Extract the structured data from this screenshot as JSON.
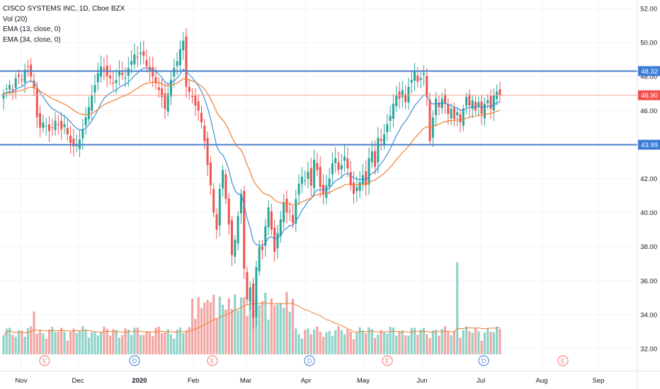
{
  "legend": {
    "symbol_line": "CISCO SYSTEMS INC, 1D, Cboe BZX",
    "volume_line": "Vol (20)",
    "ema_fast_line": "EMA (13, close, 0)",
    "ema_slow_line": "EMA (34, close, 0)"
  },
  "colors": {
    "up": "#26a69a",
    "down": "#ef5350",
    "vol_up": "#8fd2c8",
    "vol_down": "#f2a5a2",
    "ema_fast": "#3d8fd6",
    "ema_slow": "#f07f33",
    "horizontal_line": "#4a7fc7",
    "last_price_line": "#f4a59a",
    "event_circle_earnings": "#f28b82",
    "event_circle_dividend": "#5b8fd8"
  },
  "chart_data": {
    "type": "candlestick",
    "title": "CISCO SYSTEMS INC, 1D, Cboe BZX",
    "y_axis": {
      "ylim": [
        30.8,
        52.3
      ],
      "ticks": [
        32,
        34,
        36,
        38,
        40,
        42,
        44,
        46,
        48,
        50,
        52
      ],
      "tick_labels": [
        "32.00",
        "34.00",
        "36.00",
        "38.00",
        "40.00",
        "42.00",
        "44.00",
        "46.00",
        "48.00",
        "50.00",
        "52.00"
      ]
    },
    "x_axis": {
      "tick_labels": [
        "Nov",
        "Dec",
        "2020",
        "Feb",
        "Mar",
        "Apr",
        "May",
        "Jun",
        "Jul",
        "Aug",
        "Sep"
      ]
    },
    "price_labels": [
      {
        "value": 48.32,
        "text": "48.32",
        "kind": "horizontal_line"
      },
      {
        "value": 46.9,
        "text": "46.90",
        "kind": "last_price"
      },
      {
        "value": 43.99,
        "text": "43.99",
        "kind": "horizontal_line"
      }
    ],
    "horizontal_lines": [
      48.32,
      43.99
    ],
    "events": [
      {
        "type": "earnings",
        "letter": "E"
      },
      {
        "type": "dividend",
        "letter": "D"
      },
      {
        "type": "earnings",
        "letter": "E"
      },
      {
        "type": "dividend",
        "letter": "D"
      },
      {
        "type": "earnings",
        "letter": "E"
      },
      {
        "type": "dividend",
        "letter": "D"
      },
      {
        "type": "earnings",
        "letter": "E"
      }
    ],
    "closes": [
      47.0,
      47.3,
      47.5,
      47.2,
      47.9,
      48.0,
      47.8,
      48.4,
      48.6,
      48.0,
      47.3,
      45.6,
      45.0,
      45.3,
      45.1,
      44.8,
      45.0,
      45.4,
      45.2,
      44.9,
      45.2,
      44.6,
      44.1,
      43.9,
      44.0,
      44.3,
      44.9,
      45.6,
      46.2,
      46.9,
      47.5,
      48.2,
      48.6,
      48.4,
      48.0,
      47.9,
      47.6,
      47.8,
      48.3,
      48.1,
      47.9,
      48.5,
      48.9,
      49.3,
      49.1,
      49.4,
      49.2,
      48.6,
      48.3,
      48.0,
      47.6,
      47.2,
      46.8,
      46.1,
      47.0,
      47.8,
      48.5,
      48.9,
      49.6,
      50.1,
      47.4,
      47.1,
      46.8,
      46.3,
      46.0,
      45.3,
      44.2,
      42.8,
      41.6,
      40.0,
      39.0,
      41.4,
      42.5,
      40.8,
      39.3,
      37.5,
      38.4,
      39.8,
      41.1,
      36.7,
      34.9,
      35.6,
      33.8,
      36.8,
      38.0,
      37.8,
      39.2,
      40.3,
      39.0,
      37.7,
      38.8,
      39.6,
      40.6,
      40.0,
      40.1,
      39.4,
      40.8,
      41.7,
      42.1,
      41.9,
      42.4,
      41.6,
      43.1,
      42.5,
      41.5,
      41.1,
      41.6,
      42.0,
      42.9,
      43.2,
      42.5,
      42.8,
      43.3,
      42.6,
      41.6,
      41.1,
      41.5,
      41.8,
      42.2,
      41.6,
      43.2,
      43.6,
      42.7,
      44.4,
      44.2,
      44.6,
      45.2,
      45.7,
      46.4,
      46.9,
      46.7,
      47.2,
      46.5,
      47.4,
      47.8,
      48.3,
      47.7,
      47.9,
      48.2,
      46.8,
      44.2,
      45.6,
      46.7,
      46.2,
      46.7,
      46.4,
      45.8,
      46.1,
      45.5,
      45.9,
      45.3,
      46.1,
      46.8,
      46.3,
      46.6,
      46.0,
      46.5,
      45.8,
      46.4,
      46.6,
      46.1,
      46.9,
      47.1,
      46.9
    ],
    "volume": {
      "name": "Vol (20)",
      "unit": "relative"
    },
    "series": [
      {
        "name": "EMA (13, close, 0)",
        "period": 13
      },
      {
        "name": "EMA (34, close, 0)",
        "period": 34
      }
    ]
  }
}
